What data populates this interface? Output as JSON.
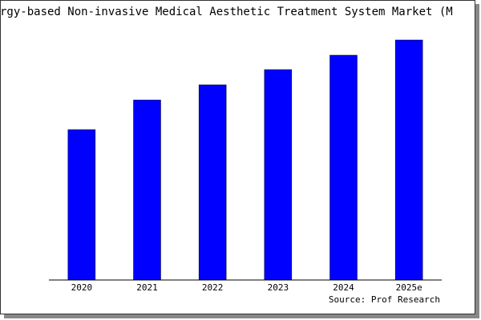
{
  "chart_data": {
    "type": "bar",
    "title": "rgy-based Non-invasive Medical Aesthetic Treatment System Market (M",
    "categories": [
      "2020",
      "2021",
      "2022",
      "2023",
      "2024",
      "2025e"
    ],
    "values": [
      188,
      225,
      244,
      263,
      281,
      300
    ],
    "color": "#0000ff",
    "ylim": [
      0,
      300
    ],
    "source": "Source: Prof Research"
  }
}
